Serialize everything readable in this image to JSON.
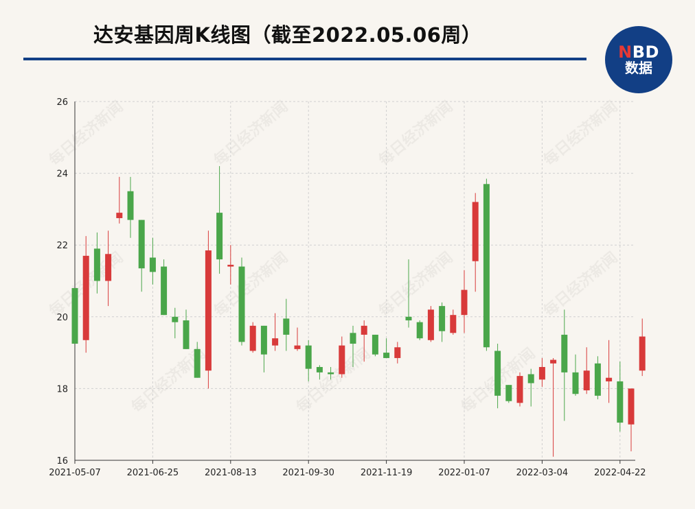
{
  "header": {
    "title": "达安基因周K线图（截至2022.05.06周）",
    "logo_line1_accent": "N",
    "logo_line1_rest": "BD",
    "logo_line2": "数据",
    "watermark": "每日经济新闻"
  },
  "colors": {
    "up": "#d83a3a",
    "down": "#4aa64a",
    "brand": "#123f85",
    "background": "#f8f5f0",
    "grid": "#cfcfcf"
  },
  "chart_data": {
    "type": "candlestick",
    "title": "达安基因周K线图（截至2022.05.06周）",
    "ylim": [
      16,
      26
    ],
    "yticks": [
      16,
      18,
      20,
      22,
      24,
      26
    ],
    "grid": true,
    "xtick_labels": [
      "2021-05-07",
      "2021-06-25",
      "2021-08-13",
      "2021-09-30",
      "2021-11-19",
      "2022-01-07",
      "2022-03-04",
      "2022-04-22"
    ],
    "xtick_indices": [
      0,
      7,
      14,
      21,
      28,
      35,
      42,
      49
    ],
    "candles": [
      {
        "o": 20.8,
        "h": 20.8,
        "l": 19.25,
        "c": 19.25
      },
      {
        "o": 19.35,
        "h": 22.25,
        "l": 19.0,
        "c": 21.7
      },
      {
        "o": 21.9,
        "h": 22.35,
        "l": 20.65,
        "c": 21.0
      },
      {
        "o": 21.0,
        "h": 22.4,
        "l": 20.3,
        "c": 21.75
      },
      {
        "o": 22.75,
        "h": 23.9,
        "l": 22.6,
        "c": 22.9
      },
      {
        "o": 23.5,
        "h": 23.9,
        "l": 22.2,
        "c": 22.7
      },
      {
        "o": 22.7,
        "h": 22.7,
        "l": 20.7,
        "c": 21.35
      },
      {
        "o": 21.65,
        "h": 22.2,
        "l": 20.9,
        "c": 21.25
      },
      {
        "o": 21.4,
        "h": 21.6,
        "l": 20.05,
        "c": 20.05
      },
      {
        "o": 20.0,
        "h": 20.25,
        "l": 19.4,
        "c": 19.85
      },
      {
        "o": 19.9,
        "h": 20.2,
        "l": 19.1,
        "c": 19.1
      },
      {
        "o": 19.1,
        "h": 19.3,
        "l": 18.3,
        "c": 18.3
      },
      {
        "o": 18.5,
        "h": 22.4,
        "l": 18.0,
        "c": 21.85
      },
      {
        "o": 22.9,
        "h": 24.2,
        "l": 21.2,
        "c": 21.6
      },
      {
        "o": 21.4,
        "h": 22.0,
        "l": 20.9,
        "c": 21.45
      },
      {
        "o": 21.4,
        "h": 21.65,
        "l": 19.2,
        "c": 19.3
      },
      {
        "o": 19.05,
        "h": 19.85,
        "l": 19.0,
        "c": 19.75
      },
      {
        "o": 19.75,
        "h": 19.75,
        "l": 18.45,
        "c": 18.95
      },
      {
        "o": 19.2,
        "h": 20.1,
        "l": 19.05,
        "c": 19.4
      },
      {
        "o": 19.95,
        "h": 20.5,
        "l": 19.05,
        "c": 19.5
      },
      {
        "o": 19.1,
        "h": 19.7,
        "l": 19.05,
        "c": 19.2
      },
      {
        "o": 19.2,
        "h": 19.35,
        "l": 18.2,
        "c": 18.55
      },
      {
        "o": 18.6,
        "h": 18.65,
        "l": 18.25,
        "c": 18.45
      },
      {
        "o": 18.45,
        "h": 18.6,
        "l": 18.25,
        "c": 18.4
      },
      {
        "o": 18.4,
        "h": 19.45,
        "l": 18.3,
        "c": 19.2
      },
      {
        "o": 19.55,
        "h": 19.75,
        "l": 18.6,
        "c": 19.25
      },
      {
        "o": 19.5,
        "h": 19.9,
        "l": 18.75,
        "c": 19.75
      },
      {
        "o": 19.5,
        "h": 19.5,
        "l": 18.9,
        "c": 18.95
      },
      {
        "o": 19.0,
        "h": 19.4,
        "l": 18.85,
        "c": 18.85
      },
      {
        "o": 18.85,
        "h": 19.3,
        "l": 18.7,
        "c": 19.15
      },
      {
        "o": 20.0,
        "h": 21.6,
        "l": 19.7,
        "c": 19.9
      },
      {
        "o": 19.85,
        "h": 19.9,
        "l": 19.35,
        "c": 19.4
      },
      {
        "o": 19.35,
        "h": 20.3,
        "l": 19.3,
        "c": 20.2
      },
      {
        "o": 20.3,
        "h": 20.4,
        "l": 19.3,
        "c": 19.6
      },
      {
        "o": 19.55,
        "h": 20.2,
        "l": 19.5,
        "c": 20.05
      },
      {
        "o": 20.05,
        "h": 21.3,
        "l": 19.55,
        "c": 20.75
      },
      {
        "o": 21.55,
        "h": 23.45,
        "l": 20.7,
        "c": 23.2
      },
      {
        "o": 23.7,
        "h": 23.85,
        "l": 19.05,
        "c": 19.15
      },
      {
        "o": 19.05,
        "h": 19.25,
        "l": 17.45,
        "c": 17.8
      },
      {
        "o": 18.1,
        "h": 18.1,
        "l": 17.6,
        "c": 17.65
      },
      {
        "o": 17.6,
        "h": 18.45,
        "l": 17.5,
        "c": 18.35
      },
      {
        "o": 18.4,
        "h": 18.55,
        "l": 17.5,
        "c": 18.15
      },
      {
        "o": 18.25,
        "h": 18.85,
        "l": 18.05,
        "c": 18.6
      },
      {
        "o": 18.7,
        "h": 18.85,
        "l": 16.1,
        "c": 18.8
      },
      {
        "o": 19.5,
        "h": 20.2,
        "l": 17.1,
        "c": 18.45
      },
      {
        "o": 18.45,
        "h": 18.95,
        "l": 17.8,
        "c": 17.85
      },
      {
        "o": 17.95,
        "h": 19.15,
        "l": 17.85,
        "c": 18.5
      },
      {
        "o": 18.7,
        "h": 18.9,
        "l": 17.7,
        "c": 17.8
      },
      {
        "o": 18.2,
        "h": 19.35,
        "l": 17.6,
        "c": 18.3
      },
      {
        "o": 18.2,
        "h": 18.75,
        "l": 16.8,
        "c": 17.05
      },
      {
        "o": 17.0,
        "h": 18.0,
        "l": 16.25,
        "c": 18.0
      },
      {
        "o": 18.5,
        "h": 19.95,
        "l": 18.35,
        "c": 19.45
      }
    ]
  }
}
